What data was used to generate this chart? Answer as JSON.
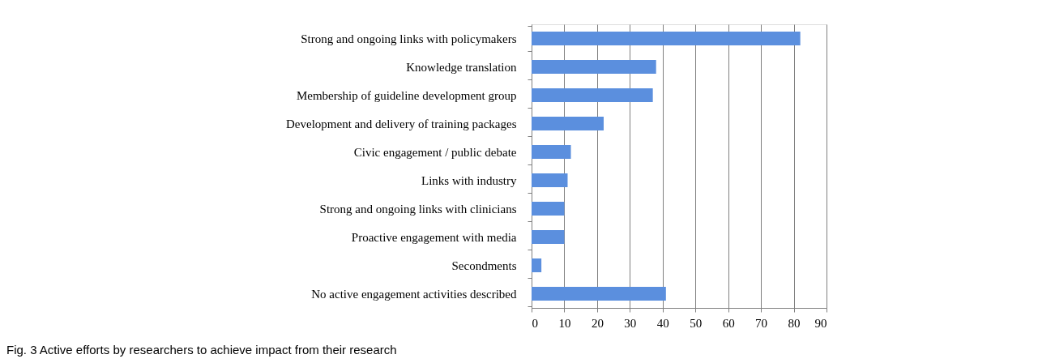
{
  "chart_data": {
    "type": "bar",
    "orientation": "horizontal",
    "categories": [
      "Strong and ongoing links with policymakers",
      "Knowledge translation",
      "Membership of guideline development group",
      "Development and delivery of training packages",
      "Civic engagement / public debate",
      "Links with industry",
      "Strong and ongoing links with clinicians",
      "Proactive engagement with media",
      "Secondments",
      "No active engagement activities described"
    ],
    "values": [
      82,
      38,
      37,
      22,
      12,
      11,
      10,
      10,
      3,
      41
    ],
    "color": "#5b8fde",
    "xlim": [
      0,
      90
    ],
    "xticks": [
      0,
      10,
      20,
      30,
      40,
      50,
      60,
      70,
      80,
      90
    ],
    "grid": "x",
    "annotations": [
      "Fig. 3 Active efforts by researchers to achieve impact from their research"
    ]
  }
}
